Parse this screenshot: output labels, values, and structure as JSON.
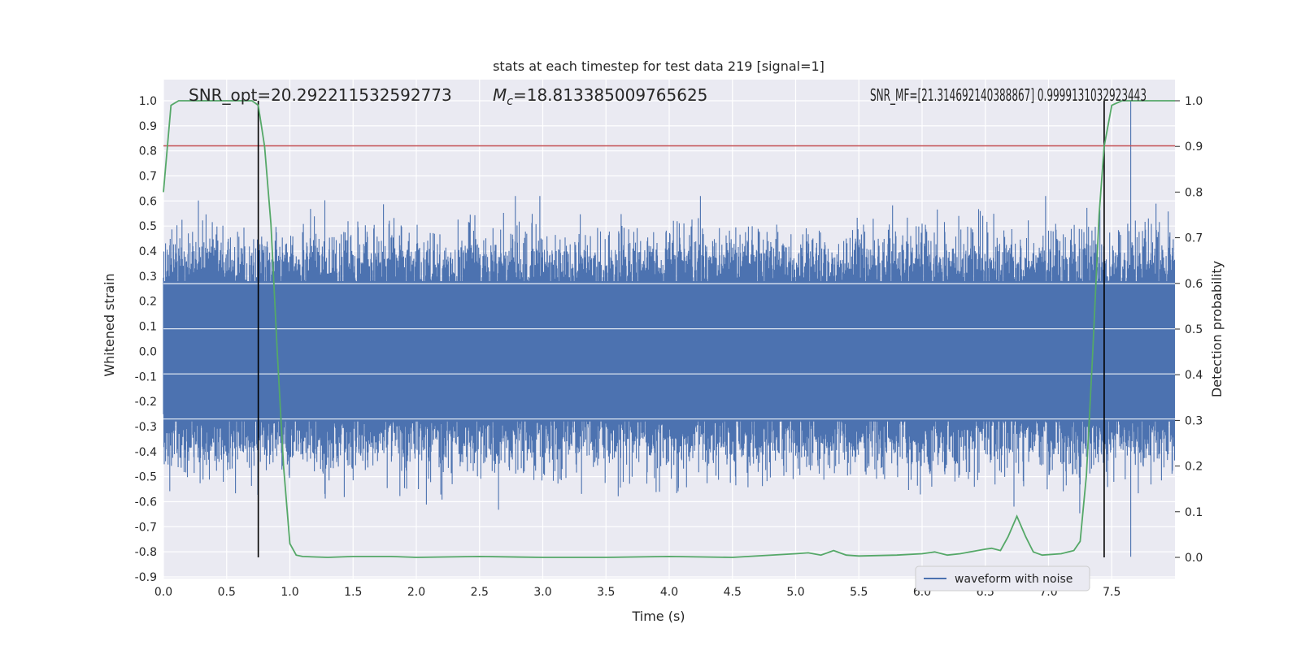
{
  "chart_data": {
    "type": "line",
    "title": "stats at each timestep for test data 219 [signal=1]",
    "xlabel": "Time (s)",
    "ylabel": "Whitened strain",
    "y2label": "Detection probability",
    "xlim": [
      0.0,
      8.0
    ],
    "ylim": [
      -0.9,
      1.0
    ],
    "y2lim": [
      0.0,
      1.0
    ],
    "x_ticks": [
      0.0,
      0.5,
      1.0,
      1.5,
      2.0,
      2.5,
      3.0,
      3.5,
      4.0,
      4.5,
      5.0,
      5.5,
      6.0,
      6.5,
      7.0,
      7.5
    ],
    "y_ticks": [
      1.0,
      0.9,
      0.8,
      0.7,
      0.6,
      0.5,
      0.4,
      0.3,
      0.2,
      0.1,
      0.0,
      -0.1,
      -0.2,
      -0.3,
      -0.4,
      -0.5,
      -0.6,
      -0.7,
      -0.8,
      -0.9
    ],
    "y2_ticks": [
      1.0,
      0.9,
      0.8,
      0.7,
      0.6,
      0.5,
      0.4,
      0.3,
      0.2,
      0.1,
      0.0
    ],
    "grid": true,
    "legend": {
      "placement": "lower-right",
      "entries": [
        "waveform with noise"
      ]
    },
    "annotations": {
      "snr_opt": "SNR_opt=20.292211532592773",
      "mc_label": "M",
      "mc_sub": "c",
      "mc_value": "=18.813385009765625",
      "overlap_text": "SNR_MF=[21.314692140388867]  0.9999131032923443"
    },
    "colors": {
      "waveform": "#4c72b0",
      "probability": "#55a868",
      "threshold": "#c44e52",
      "markers": "#000000",
      "background": "#eaeaf2"
    },
    "threshold_y": 0.82,
    "vertical_markers_x": [
      0.75,
      7.44
    ],
    "waveform_envelope": {
      "description_free_band": [
        {
          "x": 0.0,
          "lo": -0.35,
          "hi": 0.4
        },
        {
          "x": 8.0,
          "lo": -0.35,
          "hi": 0.4
        }
      ],
      "peak_max": 1.0,
      "peak_min": -0.82,
      "peak_max_x": 7.65
    },
    "probability_series": {
      "name": "",
      "x": [
        0.0,
        0.06,
        0.12,
        0.2,
        0.3,
        0.5,
        0.7,
        0.75,
        0.8,
        0.85,
        0.9,
        0.95,
        1.0,
        1.05,
        1.1,
        1.3,
        1.5,
        1.8,
        2.0,
        2.5,
        3.0,
        3.5,
        4.0,
        4.5,
        5.0,
        5.1,
        5.2,
        5.3,
        5.4,
        5.5,
        5.8,
        6.0,
        6.1,
        6.2,
        6.3,
        6.5,
        6.55,
        6.62,
        6.68,
        6.75,
        6.82,
        6.88,
        6.95,
        7.1,
        7.2,
        7.25,
        7.3,
        7.35,
        7.4,
        7.44,
        7.5,
        7.58,
        7.65,
        8.0
      ],
      "y": [
        0.8,
        0.99,
        1.0,
        1.0,
        1.0,
        1.0,
        1.0,
        0.99,
        0.9,
        0.73,
        0.45,
        0.2,
        0.03,
        0.005,
        0.002,
        0.0,
        0.002,
        0.002,
        0.0,
        0.002,
        0.0,
        0.0,
        0.002,
        0.0,
        0.008,
        0.01,
        0.005,
        0.015,
        0.005,
        0.003,
        0.005,
        0.008,
        0.012,
        0.005,
        0.008,
        0.018,
        0.02,
        0.015,
        0.045,
        0.09,
        0.045,
        0.012,
        0.005,
        0.008,
        0.015,
        0.035,
        0.18,
        0.45,
        0.75,
        0.9,
        0.99,
        1.0,
        1.0,
        1.0
      ]
    }
  }
}
